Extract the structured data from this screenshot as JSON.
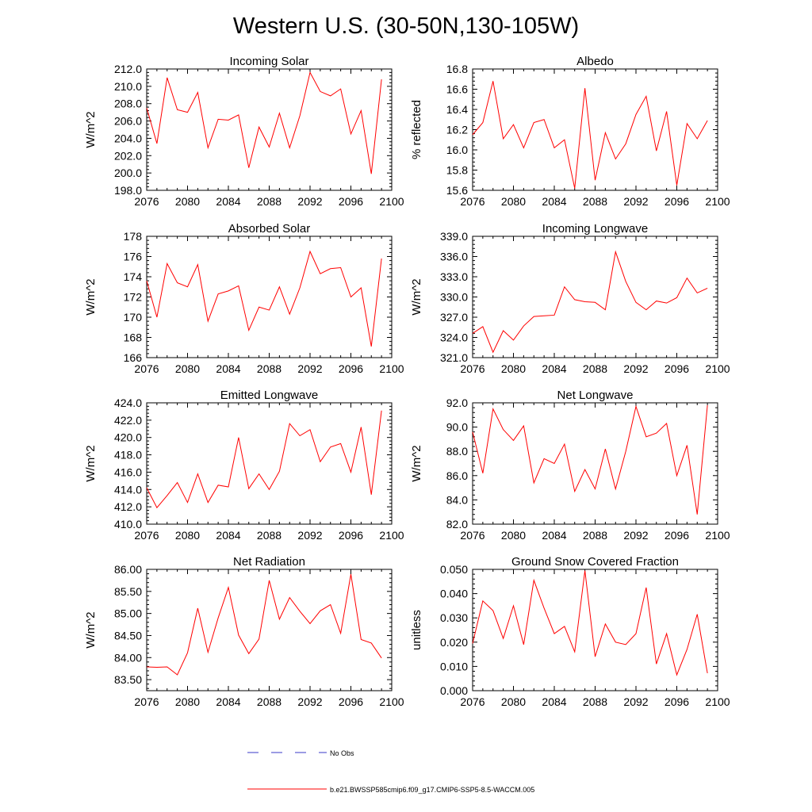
{
  "figure": {
    "title": "Western U.S. (30-50N,130-105W)",
    "legend": [
      {
        "label": "No Obs",
        "color": "#3a3ac8",
        "dash": "dashed"
      },
      {
        "label": "b.e21.BWSSP585cmip6.f09_g17.CMIP6-SSP5-8.5-WACCM.005",
        "color": "#ff0000",
        "dash": "solid"
      }
    ]
  },
  "chart_data": [
    {
      "type": "line",
      "title": "Incoming Solar",
      "ylabel": "W/m^2",
      "xlim": [
        2076,
        2100
      ],
      "ylim": [
        198.0,
        212.0
      ],
      "xticks": [
        2076,
        2080,
        2084,
        2088,
        2092,
        2096,
        2100
      ],
      "yticks": [
        198.0,
        200.0,
        202.0,
        204.0,
        206.0,
        208.0,
        210.0,
        212.0
      ],
      "ytick_labels": [
        "198.0",
        "200.0",
        "202.0",
        "204.0",
        "206.0",
        "208.0",
        "210.0",
        "212.0"
      ],
      "series": [
        {
          "color": "#ff0000",
          "x": [
            2076,
            2077,
            2078,
            2079,
            2080,
            2081,
            2082,
            2083,
            2084,
            2085,
            2086,
            2087,
            2088,
            2089,
            2090,
            2091,
            2092,
            2093,
            2094,
            2095,
            2096,
            2097,
            2098,
            2099
          ],
          "y": [
            207.5,
            203.4,
            211.0,
            207.3,
            207.0,
            209.3,
            202.9,
            206.2,
            206.1,
            206.7,
            200.6,
            205.3,
            203.0,
            206.9,
            202.9,
            206.6,
            211.6,
            209.4,
            208.9,
            209.7,
            204.5,
            207.2,
            199.9,
            210.8
          ]
        }
      ]
    },
    {
      "type": "line",
      "title": "Albedo",
      "ylabel": "% reflected",
      "xlim": [
        2076,
        2100
      ],
      "ylim": [
        15.6,
        16.8
      ],
      "xticks": [
        2076,
        2080,
        2084,
        2088,
        2092,
        2096,
        2100
      ],
      "yticks": [
        15.6,
        15.8,
        16.0,
        16.2,
        16.4,
        16.6,
        16.8
      ],
      "ytick_labels": [
        "15.6",
        "15.8",
        "16.0",
        "16.2",
        "16.4",
        "16.6",
        "16.8"
      ],
      "series": [
        {
          "color": "#ff0000",
          "x": [
            2076,
            2077,
            2078,
            2079,
            2080,
            2081,
            2082,
            2083,
            2084,
            2085,
            2086,
            2087,
            2088,
            2089,
            2090,
            2091,
            2092,
            2093,
            2094,
            2095,
            2096,
            2097,
            2098,
            2099
          ],
          "y": [
            16.15,
            16.27,
            16.68,
            16.11,
            16.25,
            16.02,
            16.27,
            16.3,
            16.02,
            16.1,
            15.62,
            16.61,
            15.7,
            16.17,
            15.91,
            16.06,
            16.35,
            16.53,
            15.99,
            16.38,
            15.65,
            16.26,
            16.11,
            16.29
          ]
        }
      ]
    },
    {
      "type": "line",
      "title": "Absorbed Solar",
      "ylabel": "W/m^2",
      "xlim": [
        2076,
        2100
      ],
      "ylim": [
        166,
        178
      ],
      "xticks": [
        2076,
        2080,
        2084,
        2088,
        2092,
        2096,
        2100
      ],
      "yticks": [
        166,
        168,
        170,
        172,
        174,
        176,
        178
      ],
      "ytick_labels": [
        "166",
        "168",
        "170",
        "172",
        "174",
        "176",
        "178"
      ],
      "series": [
        {
          "color": "#ff0000",
          "x": [
            2076,
            2077,
            2078,
            2079,
            2080,
            2081,
            2082,
            2083,
            2084,
            2085,
            2086,
            2087,
            2088,
            2089,
            2090,
            2091,
            2092,
            2093,
            2094,
            2095,
            2096,
            2097,
            2098,
            2099
          ],
          "y": [
            173.6,
            170.0,
            175.3,
            173.4,
            173.0,
            175.2,
            169.6,
            172.3,
            172.6,
            173.1,
            168.7,
            171.0,
            170.7,
            173.0,
            170.3,
            172.9,
            176.5,
            174.3,
            174.8,
            174.9,
            172.0,
            172.9,
            167.1,
            175.8
          ]
        }
      ]
    },
    {
      "type": "line",
      "title": "Incoming Longwave",
      "ylabel": "W/m^2",
      "xlim": [
        2076,
        2100
      ],
      "ylim": [
        321.0,
        339.0
      ],
      "xticks": [
        2076,
        2080,
        2084,
        2088,
        2092,
        2096,
        2100
      ],
      "yticks": [
        321.0,
        324.0,
        327.0,
        330.0,
        333.0,
        336.0,
        339.0
      ],
      "ytick_labels": [
        "321.0",
        "324.0",
        "327.0",
        "330.0",
        "333.0",
        "336.0",
        "339.0"
      ],
      "series": [
        {
          "color": "#ff0000",
          "x": [
            2076,
            2077,
            2078,
            2079,
            2080,
            2081,
            2082,
            2083,
            2084,
            2085,
            2086,
            2087,
            2088,
            2089,
            2090,
            2091,
            2092,
            2093,
            2094,
            2095,
            2096,
            2097,
            2098,
            2099
          ],
          "y": [
            324.6,
            325.6,
            321.8,
            325.0,
            323.6,
            325.7,
            327.1,
            327.2,
            327.3,
            331.5,
            329.6,
            329.3,
            329.2,
            328.1,
            336.7,
            332.3,
            329.2,
            328.1,
            329.4,
            329.1,
            329.9,
            332.8,
            330.6,
            331.3
          ]
        }
      ]
    },
    {
      "type": "line",
      "title": "Emitted Longwave",
      "ylabel": "W/m^2",
      "xlim": [
        2076,
        2100
      ],
      "ylim": [
        410.0,
        424.0
      ],
      "xticks": [
        2076,
        2080,
        2084,
        2088,
        2092,
        2096,
        2100
      ],
      "yticks": [
        410.0,
        412.0,
        414.0,
        416.0,
        418.0,
        420.0,
        422.0,
        424.0
      ],
      "ytick_labels": [
        "410.0",
        "412.0",
        "414.0",
        "416.0",
        "418.0",
        "420.0",
        "422.0",
        "424.0"
      ],
      "series": [
        {
          "color": "#ff0000",
          "x": [
            2076,
            2077,
            2078,
            2079,
            2080,
            2081,
            2082,
            2083,
            2084,
            2085,
            2086,
            2087,
            2088,
            2089,
            2090,
            2091,
            2092,
            2093,
            2094,
            2095,
            2096,
            2097,
            2098,
            2099
          ],
          "y": [
            414.2,
            411.9,
            413.3,
            414.8,
            412.5,
            415.8,
            412.5,
            414.5,
            414.3,
            420.0,
            414.1,
            415.8,
            414.0,
            416.1,
            421.6,
            420.2,
            420.9,
            417.2,
            418.9,
            419.3,
            416.0,
            421.2,
            413.4,
            423.1
          ]
        }
      ]
    },
    {
      "type": "line",
      "title": "Net Longwave",
      "ylabel": "W/m^2",
      "xlim": [
        2076,
        2100
      ],
      "ylim": [
        82.0,
        92.0
      ],
      "xticks": [
        2076,
        2080,
        2084,
        2088,
        2092,
        2096,
        2100
      ],
      "yticks": [
        82.0,
        84.0,
        86.0,
        88.0,
        90.0,
        92.0
      ],
      "ytick_labels": [
        "82.0",
        "84.0",
        "86.0",
        "88.0",
        "90.0",
        "92.0"
      ],
      "series": [
        {
          "color": "#ff0000",
          "x": [
            2076,
            2077,
            2078,
            2079,
            2080,
            2081,
            2082,
            2083,
            2084,
            2085,
            2086,
            2087,
            2088,
            2089,
            2090,
            2091,
            2092,
            2093,
            2094,
            2095,
            2096,
            2097,
            2098,
            2099
          ],
          "y": [
            89.6,
            86.2,
            91.5,
            89.8,
            88.9,
            90.1,
            85.4,
            87.4,
            87.0,
            88.6,
            84.7,
            86.5,
            84.9,
            88.2,
            84.9,
            88.0,
            91.7,
            89.2,
            89.5,
            90.3,
            86.0,
            88.5,
            82.8,
            91.8
          ]
        }
      ]
    },
    {
      "type": "line",
      "title": "Net Radiation",
      "ylabel": "W/m^2",
      "xlim": [
        2076,
        2100
      ],
      "ylim": [
        83.25,
        86.0
      ],
      "xticks": [
        2076,
        2080,
        2084,
        2088,
        2092,
        2096,
        2100
      ],
      "yticks": [
        83.5,
        84.0,
        84.5,
        85.0,
        85.5,
        86.0
      ],
      "ytick_labels": [
        "83.50",
        "84.00",
        "84.50",
        "85.00",
        "85.50",
        "86.00"
      ],
      "series": [
        {
          "color": "#ff0000",
          "x": [
            2076,
            2077,
            2078,
            2079,
            2080,
            2081,
            2082,
            2083,
            2084,
            2085,
            2086,
            2087,
            2088,
            2089,
            2090,
            2091,
            2092,
            2093,
            2094,
            2095,
            2096,
            2097,
            2098,
            2099
          ],
          "y": [
            83.79,
            83.78,
            83.79,
            83.61,
            84.11,
            85.12,
            84.12,
            84.9,
            85.59,
            84.51,
            84.09,
            84.42,
            85.75,
            84.87,
            85.36,
            85.05,
            84.77,
            85.06,
            85.2,
            84.55,
            85.89,
            84.41,
            84.33,
            83.99
          ]
        }
      ]
    },
    {
      "type": "line",
      "title": "Ground Snow Covered Fraction",
      "ylabel": "unitless",
      "xlim": [
        2076,
        2100
      ],
      "ylim": [
        0.0,
        0.05
      ],
      "xticks": [
        2076,
        2080,
        2084,
        2088,
        2092,
        2096,
        2100
      ],
      "yticks": [
        0.0,
        0.01,
        0.02,
        0.03,
        0.04,
        0.05
      ],
      "ytick_labels": [
        "0.000",
        "0.010",
        "0.020",
        "0.030",
        "0.040",
        "0.050"
      ],
      "series": [
        {
          "color": "#ff0000",
          "x": [
            2076,
            2077,
            2078,
            2079,
            2080,
            2081,
            2082,
            2083,
            2084,
            2085,
            2086,
            2087,
            2088,
            2089,
            2090,
            2091,
            2092,
            2093,
            2094,
            2095,
            2096,
            2097,
            2098,
            2099
          ],
          "y": [
            0.0195,
            0.037,
            0.033,
            0.0215,
            0.035,
            0.019,
            0.0455,
            0.034,
            0.0235,
            0.0265,
            0.016,
            0.0495,
            0.014,
            0.0275,
            0.02,
            0.019,
            0.0235,
            0.0425,
            0.011,
            0.0235,
            0.0065,
            0.017,
            0.0315,
            0.0072
          ]
        }
      ]
    }
  ]
}
